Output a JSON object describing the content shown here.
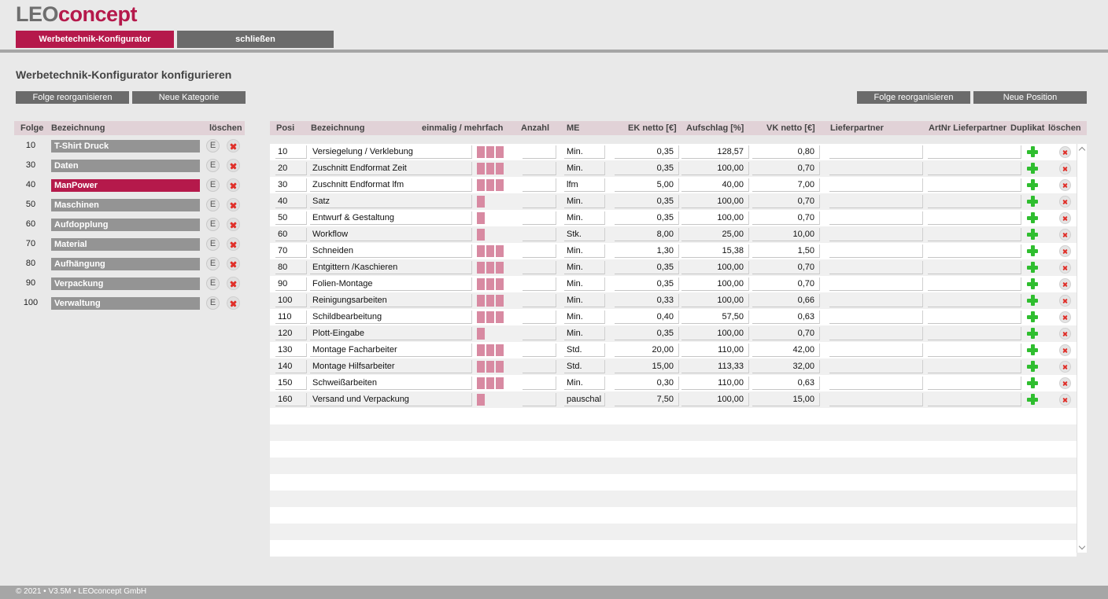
{
  "brand": {
    "part1": "LEO",
    "part2": "concept"
  },
  "nav": {
    "active_tab": "Werbetechnik-Konfigurator",
    "close_tab": "schließen"
  },
  "page_title": "Werbetechnik-Konfigurator konfigurieren",
  "left_buttons": {
    "reorg": "Folge reorganisieren",
    "new_category": "Neue  Kategorie"
  },
  "right_buttons": {
    "reorg": "Folge reorganisieren",
    "new_position": "Neue  Position"
  },
  "categories": {
    "headers": {
      "folge": "Folge",
      "bezeichnung": "Bezeichnung",
      "loeschen": "löschen"
    },
    "edit_label": "E",
    "rows": [
      {
        "folge": "10",
        "name": "T-Shirt Druck",
        "active": false
      },
      {
        "folge": "30",
        "name": "Daten",
        "active": false
      },
      {
        "folge": "40",
        "name": "ManPower",
        "active": true
      },
      {
        "folge": "50",
        "name": "Maschinen",
        "active": false
      },
      {
        "folge": "60",
        "name": "Aufdopplung",
        "active": false
      },
      {
        "folge": "70",
        "name": "Material",
        "active": false
      },
      {
        "folge": "80",
        "name": "Aufhängung",
        "active": false
      },
      {
        "folge": "90",
        "name": "Verpackung",
        "active": false
      },
      {
        "folge": "100",
        "name": "Verwaltung",
        "active": false
      }
    ]
  },
  "positions": {
    "headers": {
      "posi": "Posi",
      "bezeichnung": "Bezeichnung",
      "einmalig": "einmalig / mehrfach",
      "anzahl": "Anzahl",
      "me": "ME",
      "ek": "EK netto [€]",
      "aufschlag": "Aufschlag [%]",
      "vk": "VK netto [€]",
      "lieferpartner": "Lieferpartner",
      "artnr": "ArtNr Lieferpartner",
      "duplikat": "Duplikat",
      "loeschen": "löschen"
    },
    "rows": [
      {
        "posi": "10",
        "bez": "Versiegelung / Verklebung",
        "marks": 3,
        "anzahl": "",
        "me": "Min.",
        "ek": "0,35",
        "auf": "128,57",
        "vk": "0,80",
        "lief": "",
        "art": ""
      },
      {
        "posi": "20",
        "bez": "Zuschnitt Endformat Zeit",
        "marks": 3,
        "anzahl": "",
        "me": "Min.",
        "ek": "0,35",
        "auf": "100,00",
        "vk": "0,70",
        "lief": "",
        "art": ""
      },
      {
        "posi": "30",
        "bez": "Zuschnitt Endformat lfm",
        "marks": 3,
        "anzahl": "",
        "me": "lfm",
        "ek": "5,00",
        "auf": "40,00",
        "vk": "7,00",
        "lief": "",
        "art": ""
      },
      {
        "posi": "40",
        "bez": "Satz",
        "marks": 1,
        "anzahl": "",
        "me": "Min.",
        "ek": "0,35",
        "auf": "100,00",
        "vk": "0,70",
        "lief": "",
        "art": ""
      },
      {
        "posi": "50",
        "bez": "Entwurf & Gestaltung",
        "marks": 1,
        "anzahl": "",
        "me": "Min.",
        "ek": "0,35",
        "auf": "100,00",
        "vk": "0,70",
        "lief": "",
        "art": ""
      },
      {
        "posi": "60",
        "bez": "Workflow",
        "marks": 1,
        "anzahl": "",
        "me": "Stk.",
        "ek": "8,00",
        "auf": "25,00",
        "vk": "10,00",
        "lief": "",
        "art": ""
      },
      {
        "posi": "70",
        "bez": "Schneiden",
        "marks": 3,
        "anzahl": "",
        "me": "Min.",
        "ek": "1,30",
        "auf": "15,38",
        "vk": "1,50",
        "lief": "",
        "art": ""
      },
      {
        "posi": "80",
        "bez": "Entgittern /Kaschieren",
        "marks": 3,
        "anzahl": "",
        "me": "Min.",
        "ek": "0,35",
        "auf": "100,00",
        "vk": "0,70",
        "lief": "",
        "art": ""
      },
      {
        "posi": "90",
        "bez": "Folien-Montage",
        "marks": 3,
        "anzahl": "",
        "me": "Min.",
        "ek": "0,35",
        "auf": "100,00",
        "vk": "0,70",
        "lief": "",
        "art": ""
      },
      {
        "posi": "100",
        "bez": "Reinigungsarbeiten",
        "marks": 3,
        "anzahl": "",
        "me": "Min.",
        "ek": "0,33",
        "auf": "100,00",
        "vk": "0,66",
        "lief": "",
        "art": ""
      },
      {
        "posi": "110",
        "bez": "Schildbearbeitung",
        "marks": 3,
        "anzahl": "",
        "me": "Min.",
        "ek": "0,40",
        "auf": "57,50",
        "vk": "0,63",
        "lief": "",
        "art": ""
      },
      {
        "posi": "120",
        "bez": "Plott-Eingabe",
        "marks": 1,
        "anzahl": "",
        "me": "Min.",
        "ek": "0,35",
        "auf": "100,00",
        "vk": "0,70",
        "lief": "",
        "art": ""
      },
      {
        "posi": "130",
        "bez": "Montage Facharbeiter",
        "marks": 3,
        "anzahl": "",
        "me": "Std.",
        "ek": "20,00",
        "auf": "110,00",
        "vk": "42,00",
        "lief": "",
        "art": ""
      },
      {
        "posi": "140",
        "bez": "Montage Hilfsarbeiter",
        "marks": 3,
        "anzahl": "",
        "me": "Std.",
        "ek": "15,00",
        "auf": "113,33",
        "vk": "32,00",
        "lief": "",
        "art": ""
      },
      {
        "posi": "150",
        "bez": "Schweißarbeiten",
        "marks": 3,
        "anzahl": "",
        "me": "Min.",
        "ek": "0,30",
        "auf": "110,00",
        "vk": "0,63",
        "lief": "",
        "art": ""
      },
      {
        "posi": "160",
        "bez": "Versand und Verpackung",
        "marks": 1,
        "anzahl": "",
        "me": "pauschal",
        "ek": "7,50",
        "auf": "100,00",
        "vk": "15,00",
        "lief": "",
        "art": ""
      }
    ]
  },
  "icons": {
    "edit": "edit-icon",
    "delete": "delete-x-icon",
    "duplicate": "plus-icon",
    "scroll_up": "chevron-up-icon",
    "scroll_down": "chevron-down-icon"
  },
  "colors": {
    "accent": "#b5194b",
    "button": "#6b6b6b",
    "category": "#949494",
    "marker": "#d88aa2",
    "plus": "#2fbe2f",
    "delete": "#e0302a"
  },
  "footer": "© 2021 • V3.5M • LEOconcept GmbH"
}
